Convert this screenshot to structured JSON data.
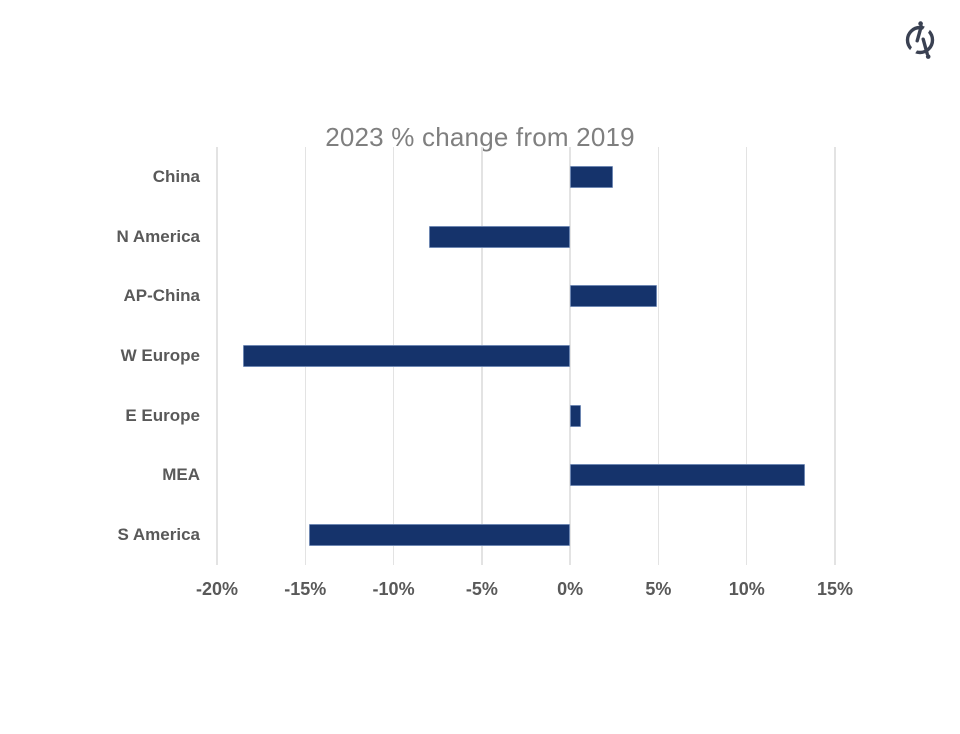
{
  "header": {
    "logo_icon": "circular-slash-brand-icon",
    "logo_color": "#3a4152"
  },
  "chart_data": {
    "type": "bar",
    "orientation": "horizontal",
    "title": "2023 % change from 2019",
    "categories": [
      "China",
      "N America",
      "AP-China",
      "W Europe",
      "E Europe",
      "MEA",
      "S America"
    ],
    "values": [
      2.4,
      -8.0,
      4.9,
      -18.5,
      0.6,
      13.3,
      -14.8
    ],
    "unit": "%",
    "xlabel": "",
    "ylabel": "",
    "xlim": [
      -20,
      15
    ],
    "x_tick_labels": [
      "-20%",
      "-15%",
      "-10%",
      "-5%",
      "0%",
      "5%",
      "10%",
      "15%"
    ],
    "x_tick_values": [
      -20,
      -15,
      -10,
      -5,
      0,
      5,
      10,
      15
    ],
    "grid": true,
    "legend": false,
    "colors": {
      "bar_fill": "#15336b",
      "bar_border": "#6e87b2",
      "gridline": "#e3e3e3",
      "title_text": "#7f7f7f",
      "axis_text": "#595959"
    }
  }
}
